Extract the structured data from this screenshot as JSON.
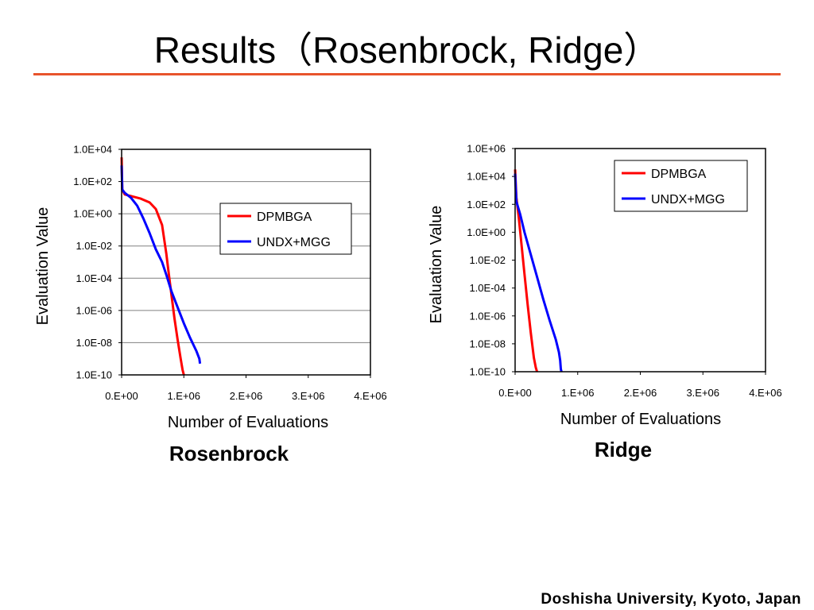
{
  "slide": {
    "title": "Results（Rosenbrock, Ridge）",
    "accent_color": "#e8542c",
    "footer": "Doshisha University, Kyoto, Japan"
  },
  "chart_data": [
    {
      "type": "line",
      "caption": "Rosenbrock",
      "xlabel": "Number of Evaluations",
      "ylabel": "Evaluation Value",
      "xlim": [
        0,
        4000000
      ],
      "ylim_log10": [
        -10,
        4
      ],
      "y_scale": "log",
      "grid": "horizontal",
      "legend_position": "top-right",
      "x_ticks": [
        "0.E+00",
        "1.E+06",
        "2.E+06",
        "3.E+06",
        "4.E+06"
      ],
      "y_ticks": [
        "1.0E+04",
        "1.0E+02",
        "1.0E+00",
        "1.0E-02",
        "1.0E-04",
        "1.0E-06",
        "1.0E-08",
        "1.0E-10"
      ],
      "series": [
        {
          "name": "DPMBGA",
          "color": "#ff0000",
          "x": [
            0,
            10000,
            50000,
            150000,
            300000,
            450000,
            550000,
            650000,
            720000,
            760000,
            800000,
            850000,
            900000,
            950000,
            980000,
            1000000
          ],
          "log10_y": [
            3.5,
            1.5,
            1.2,
            1.1,
            0.95,
            0.7,
            0.3,
            -0.7,
            -2.5,
            -3.8,
            -5.0,
            -6.5,
            -7.8,
            -9.0,
            -9.7,
            -10.0
          ]
        },
        {
          "name": "UNDX+MGG",
          "color": "#0000ff",
          "x": [
            0,
            10000,
            50000,
            150000,
            250000,
            350000,
            450000,
            550000,
            650000,
            720000,
            800000,
            900000,
            1000000,
            1100000,
            1200000,
            1250000,
            1260000
          ],
          "log10_y": [
            3.0,
            1.5,
            1.3,
            1.0,
            0.5,
            -0.3,
            -1.2,
            -2.2,
            -3.0,
            -3.8,
            -4.8,
            -5.8,
            -6.8,
            -7.7,
            -8.5,
            -9.0,
            -9.3
          ]
        }
      ]
    },
    {
      "type": "line",
      "caption": "Ridge",
      "xlabel": "Number of Evaluations",
      "ylabel": "Evaluation Value",
      "xlim": [
        0,
        4000000
      ],
      "ylim_log10": [
        -10,
        6
      ],
      "y_scale": "log",
      "grid": "none",
      "legend_position": "top-right",
      "x_ticks": [
        "0.E+00",
        "1.E+06",
        "2.E+06",
        "3.E+06",
        "4.E+06"
      ],
      "y_ticks": [
        "1.0E+06",
        "1.0E+04",
        "1.0E+02",
        "1.0E+00",
        "1.0E-02",
        "1.0E-04",
        "1.0E-06",
        "1.0E-08",
        "1.0E-10"
      ],
      "series": [
        {
          "name": "DPMBGA",
          "color": "#ff0000",
          "x": [
            0,
            20000,
            60000,
            100000,
            150000,
            200000,
            250000,
            300000,
            330000,
            350000
          ],
          "log10_y": [
            4.5,
            2.5,
            1.0,
            -0.8,
            -3.0,
            -5.2,
            -7.2,
            -9.0,
            -9.7,
            -10.0
          ]
        },
        {
          "name": "UNDX+MGG",
          "color": "#0000ff",
          "x": [
            0,
            20000,
            80000,
            150000,
            250000,
            350000,
            450000,
            550000,
            650000,
            700000,
            720000,
            730000,
            740000
          ],
          "log10_y": [
            4.2,
            2.2,
            1.3,
            0.0,
            -1.6,
            -3.2,
            -4.8,
            -6.3,
            -7.7,
            -8.6,
            -9.2,
            -9.8,
            -10.0
          ]
        }
      ]
    }
  ]
}
